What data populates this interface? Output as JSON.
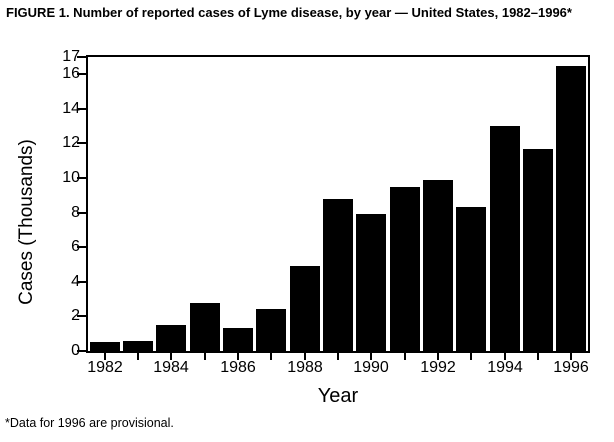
{
  "chart_data": {
    "type": "bar",
    "title": "FIGURE 1. Number of reported cases of Lyme disease, by year — United States, 1982–1996*",
    "xlabel": "Year",
    "ylabel": "Cases (Thousands)",
    "footnote": "*Data for 1996 are provisional.",
    "categories": [
      "1982",
      "1983",
      "1984",
      "1985",
      "1986",
      "1987",
      "1988",
      "1989",
      "1990",
      "1991",
      "1992",
      "1993",
      "1994",
      "1995",
      "1996"
    ],
    "values": [
      0.5,
      0.6,
      1.5,
      2.75,
      1.35,
      2.4,
      4.9,
      8.8,
      7.9,
      9.5,
      9.9,
      8.3,
      13.0,
      11.7,
      16.5
    ],
    "ylim": [
      0,
      17
    ],
    "yticks": [
      0,
      2,
      4,
      6,
      8,
      10,
      12,
      14,
      16,
      17
    ],
    "xtick_labels": [
      "1982",
      "1984",
      "1986",
      "1988",
      "1990",
      "1992",
      "1994",
      "1996"
    ],
    "bar_color": "#000000",
    "grid": false,
    "legend_position": "none"
  }
}
